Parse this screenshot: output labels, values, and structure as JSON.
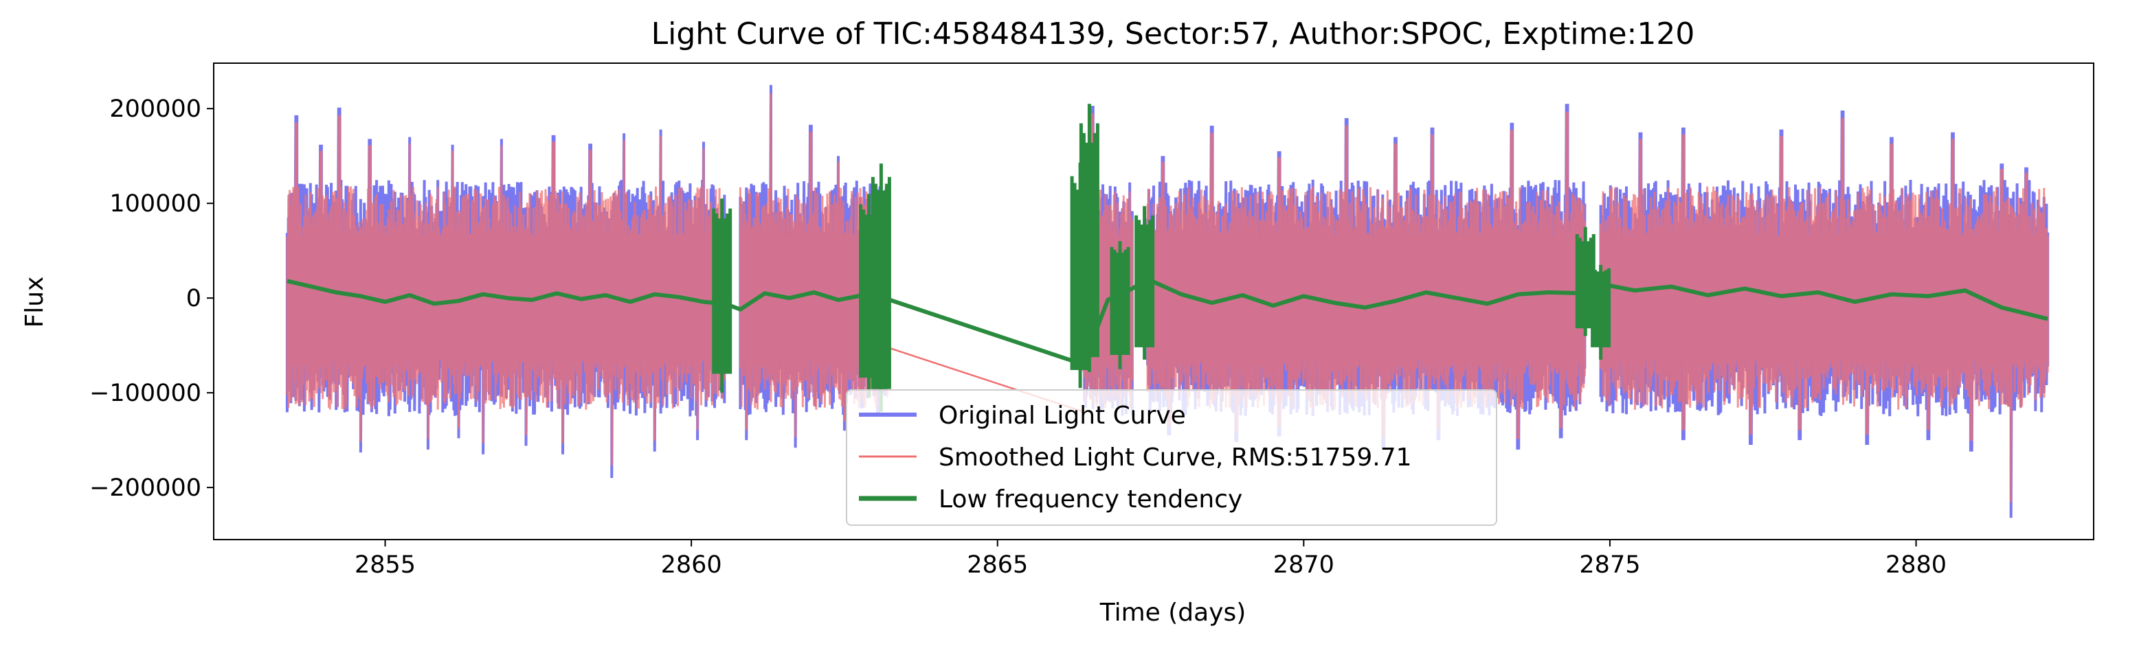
{
  "chart_data": {
    "type": "line",
    "title": "Light Curve of TIC:458484139, Sector:57, Author:SPOC, Exptime:120",
    "xlabel": "Time (days)",
    "ylabel": "Flux",
    "xlim": [
      2852.2,
      2882.9
    ],
    "ylim": [
      -255000,
      248000
    ],
    "x_ticks": [
      2855,
      2860,
      2865,
      2870,
      2875,
      2880
    ],
    "x_tick_labels": [
      "2855",
      "2860",
      "2865",
      "2870",
      "2875",
      "2880"
    ],
    "y_ticks": [
      -200000,
      -100000,
      0,
      100000,
      200000
    ],
    "y_tick_labels": [
      "−200000",
      "−100000",
      "0",
      "100000",
      "200000"
    ],
    "grid": false,
    "legend_position": "bottom-center",
    "data_gaps": [
      [
        2860.55,
        2860.8
      ],
      [
        2863.2,
        2866.4
      ],
      [
        2867.2,
        2867.45
      ],
      [
        2874.6,
        2874.85
      ]
    ],
    "segments": [
      [
        2853.4,
        2860.55
      ],
      [
        2860.8,
        2863.2
      ],
      [
        2866.4,
        2867.2
      ],
      [
        2867.45,
        2874.6
      ],
      [
        2874.85,
        2882.15
      ]
    ],
    "series": [
      {
        "name": "Original Light Curve",
        "color": "#7878f0",
        "envelope_upper": 125000,
        "envelope_lower": -125000,
        "peaks": [
          [
            2853.55,
            193000
          ],
          [
            2853.95,
            162000
          ],
          [
            2854.25,
            201000
          ],
          [
            2854.75,
            168000
          ],
          [
            2855.4,
            170000
          ],
          [
            2856.1,
            162000
          ],
          [
            2856.9,
            168000
          ],
          [
            2857.75,
            172000
          ],
          [
            2858.35,
            163000
          ],
          [
            2858.9,
            174000
          ],
          [
            2859.5,
            178000
          ],
          [
            2860.2,
            165000
          ],
          [
            2861.3,
            225000
          ],
          [
            2861.95,
            183000
          ],
          [
            2862.4,
            150000
          ],
          [
            2866.55,
            203000
          ],
          [
            2867.7,
            150000
          ],
          [
            2868.5,
            182000
          ],
          [
            2869.6,
            155000
          ],
          [
            2870.7,
            190000
          ],
          [
            2871.5,
            170000
          ],
          [
            2872.1,
            180000
          ],
          [
            2873.4,
            185000
          ],
          [
            2874.3,
            205000
          ],
          [
            2875.5,
            175000
          ],
          [
            2876.2,
            180000
          ],
          [
            2877.8,
            178000
          ],
          [
            2878.8,
            198000
          ],
          [
            2879.6,
            170000
          ],
          [
            2880.6,
            175000
          ],
          [
            2881.4,
            142000
          ],
          [
            2881.8,
            138000
          ]
        ],
        "troughs": [
          [
            2854.6,
            -163000
          ],
          [
            2855.7,
            -160000
          ],
          [
            2856.2,
            -148000
          ],
          [
            2856.6,
            -165000
          ],
          [
            2857.3,
            -156000
          ],
          [
            2857.9,
            -165000
          ],
          [
            2858.7,
            -190000
          ],
          [
            2859.4,
            -162000
          ],
          [
            2860.1,
            -150000
          ],
          [
            2860.9,
            -150000
          ],
          [
            2861.7,
            -158000
          ],
          [
            2862.5,
            -140000
          ],
          [
            2867.8,
            -145000
          ],
          [
            2868.9,
            -152000
          ],
          [
            2869.6,
            -146000
          ],
          [
            2871.3,
            -158000
          ],
          [
            2872.2,
            -150000
          ],
          [
            2873.5,
            -160000
          ],
          [
            2874.2,
            -148000
          ],
          [
            2876.2,
            -150000
          ],
          [
            2877.3,
            -155000
          ],
          [
            2878.1,
            -150000
          ],
          [
            2879.2,
            -155000
          ],
          [
            2880.2,
            -150000
          ],
          [
            2880.9,
            -162000
          ],
          [
            2881.55,
            -232000
          ]
        ]
      },
      {
        "name": "Smoothed Light Curve, RMS:51759.71",
        "color": "#f07070",
        "envelope_upper": 118000,
        "envelope_lower": -118000,
        "note_line": [
          [
            2863.2,
            -52000
          ],
          [
            2866.4,
            -120000
          ]
        ]
      },
      {
        "name": "Low frequency tendency",
        "color": "#2a8a3e",
        "x": [
          2853.4,
          2853.8,
          2854.2,
          2854.6,
          2855.0,
          2855.4,
          2855.8,
          2856.2,
          2856.6,
          2857.0,
          2857.4,
          2857.8,
          2858.2,
          2858.6,
          2859.0,
          2859.4,
          2859.8,
          2860.2,
          2860.55,
          2860.8,
          2861.2,
          2861.6,
          2862.0,
          2862.4,
          2862.8,
          2863.2,
          2866.4,
          2866.8,
          2867.2,
          2867.45,
          2868.0,
          2868.5,
          2869.0,
          2869.5,
          2870.0,
          2870.5,
          2871.0,
          2871.5,
          2872.0,
          2872.5,
          2873.0,
          2873.5,
          2874.0,
          2874.6,
          2874.85,
          2875.4,
          2876.0,
          2876.6,
          2877.2,
          2877.8,
          2878.4,
          2879.0,
          2879.6,
          2880.2,
          2880.8,
          2881.4,
          2882.15
        ],
        "y": [
          18000,
          12000,
          6000,
          2000,
          -4000,
          3000,
          -6000,
          -3000,
          4000,
          0,
          -2000,
          5000,
          -1000,
          3000,
          -4000,
          4000,
          1000,
          -4000,
          -6000,
          -12000,
          5000,
          0,
          6000,
          -2000,
          3000,
          -1000,
          -70000,
          -2000,
          10000,
          20000,
          4000,
          -5000,
          3000,
          -8000,
          2000,
          -5000,
          -10000,
          -3000,
          6000,
          0,
          -6000,
          4000,
          6000,
          5000,
          15000,
          8000,
          12000,
          3000,
          10000,
          2000,
          6000,
          -4000,
          4000,
          2000,
          8000,
          -10000,
          -22000
        ],
        "spikes": [
          [
            2860.5,
            105000,
            -100000
          ],
          [
            2862.9,
            110000,
            -105000
          ],
          [
            2863.1,
            142000,
            -120000
          ],
          [
            2866.35,
            143000,
            -95000
          ],
          [
            2866.5,
            205000,
            -78000
          ],
          [
            2867.0,
            60000,
            -75000
          ],
          [
            2867.4,
            97000,
            -65000
          ],
          [
            2874.6,
            75000,
            -40000
          ],
          [
            2874.85,
            35000,
            -65000
          ]
        ]
      }
    ]
  }
}
